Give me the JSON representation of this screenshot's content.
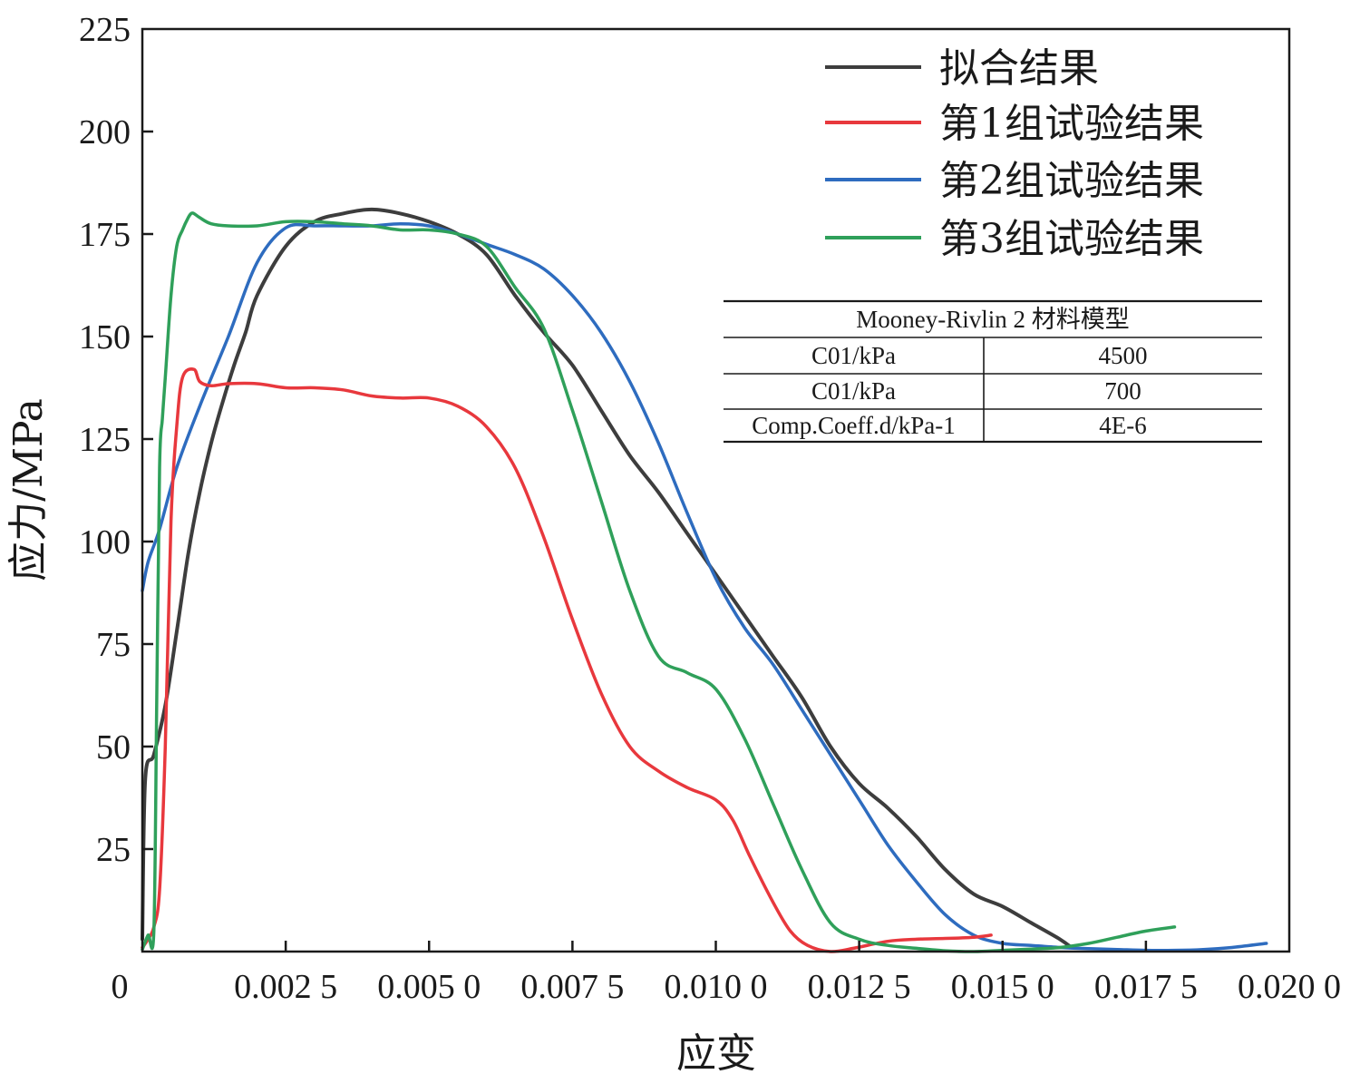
{
  "chart_data": {
    "type": "line",
    "xlabel": "应变",
    "ylabel": "应力/MPa",
    "xlim": [
      0,
      0.02
    ],
    "ylim": [
      0,
      225
    ],
    "x_ticks": [
      0,
      0.0025,
      0.005,
      0.0075,
      0.01,
      0.0125,
      0.015,
      0.0175,
      0.02
    ],
    "x_tick_labels": [
      "0",
      "0.002 5",
      "0.005 0",
      "0.007 5",
      "0.010 0",
      "0.012 5",
      "0.015 0",
      "0.017 5",
      "0.020 0"
    ],
    "y_ticks": [
      25,
      50,
      75,
      100,
      125,
      150,
      175,
      200,
      225
    ],
    "y_tick_labels": [
      "25",
      "50",
      "75",
      "100",
      "125",
      "150",
      "175",
      "200",
      "225"
    ],
    "legend_position": "top-right",
    "grid": false,
    "series": [
      {
        "name": "拟合结果",
        "color": "#3d3d3d",
        "x": [
          0,
          5e-05,
          0.0002,
          0.0004,
          0.0006,
          0.0008,
          0.001,
          0.0012,
          0.0014,
          0.0016,
          0.0018,
          0.002,
          0.0025,
          0.003,
          0.0035,
          0.004,
          0.0045,
          0.005,
          0.0055,
          0.006,
          0.0065,
          0.007,
          0.0075,
          0.008,
          0.0085,
          0.009,
          0.0095,
          0.01,
          0.0105,
          0.011,
          0.0115,
          0.012,
          0.0125,
          0.013,
          0.0135,
          0.014,
          0.0145,
          0.015,
          0.0155,
          0.016,
          0.0162
        ],
        "y": [
          3,
          42,
          48,
          60,
          78,
          97,
          112,
          124,
          134,
          143,
          151,
          160,
          172,
          178,
          180,
          181,
          180,
          178,
          175,
          170,
          160,
          151,
          143,
          132,
          121,
          112,
          102,
          92,
          82,
          72,
          62,
          50,
          41,
          35,
          28,
          20,
          14,
          11,
          7,
          3,
          1
        ],
        "width": 4
      },
      {
        "name": "第1组试验结果",
        "color": "#e8383d",
        "x": [
          0,
          0.0001,
          0.0002,
          0.0003,
          0.0004,
          0.0005,
          0.0006,
          0.0007,
          0.0009,
          0.001,
          0.0012,
          0.0015,
          0.002,
          0.0025,
          0.003,
          0.0035,
          0.004,
          0.0045,
          0.005,
          0.0055,
          0.006,
          0.0065,
          0.007,
          0.0075,
          0.008,
          0.0085,
          0.009,
          0.0095,
          0.01,
          0.0103,
          0.0106,
          0.011,
          0.0113,
          0.0116,
          0.012,
          0.0124,
          0.013,
          0.0135,
          0.014,
          0.0145,
          0.0148
        ],
        "y": [
          1,
          3,
          6,
          15,
          50,
          105,
          128,
          140,
          142,
          139,
          138,
          138.5,
          138.5,
          137.5,
          137.5,
          137,
          135.5,
          135,
          135,
          133,
          128,
          118,
          101,
          81,
          63,
          50,
          44,
          40,
          37,
          32,
          23,
          12,
          5,
          1.5,
          0,
          0.8,
          2.5,
          3,
          3.2,
          3.5,
          4
        ],
        "width": 3.5
      },
      {
        "name": "第2组试验结果",
        "color": "#2e6cbf",
        "x": [
          0,
          0.0001,
          0.0003,
          0.0006,
          0.001,
          0.0015,
          0.002,
          0.0025,
          0.003,
          0.0035,
          0.004,
          0.0045,
          0.005,
          0.0055,
          0.006,
          0.0065,
          0.007,
          0.0075,
          0.008,
          0.0085,
          0.009,
          0.0095,
          0.01,
          0.0105,
          0.011,
          0.0115,
          0.012,
          0.0125,
          0.013,
          0.0135,
          0.014,
          0.0145,
          0.015,
          0.0155,
          0.016,
          0.0165,
          0.017,
          0.0175,
          0.018,
          0.0185,
          0.019,
          0.0196
        ],
        "y": [
          88,
          95,
          103,
          118,
          133,
          150,
          168,
          176.5,
          177,
          177,
          177,
          177.5,
          177,
          175,
          172.5,
          170,
          166.5,
          160,
          151,
          139,
          124,
          107,
          91,
          79,
          70,
          59,
          48,
          37,
          26,
          17,
          9,
          4,
          2,
          1.5,
          1,
          0.7,
          0.5,
          0.3,
          0.3,
          0.5,
          1,
          2
        ],
        "width": 3.5
      },
      {
        "name": "第3组试验结果",
        "color": "#2fa05a",
        "x": [
          0,
          0.0001,
          0.0002,
          0.00025,
          0.0003,
          0.00035,
          0.0004,
          0.0005,
          0.0006,
          0.0007,
          0.0008,
          0.00085,
          0.0009,
          0.001,
          0.0012,
          0.0015,
          0.002,
          0.0025,
          0.003,
          0.0035,
          0.004,
          0.0045,
          0.005,
          0.0055,
          0.006,
          0.0065,
          0.007,
          0.0075,
          0.008,
          0.0085,
          0.009,
          0.0095,
          0.01,
          0.0105,
          0.011,
          0.0115,
          0.012,
          0.0125,
          0.013,
          0.0135,
          0.014,
          0.0145,
          0.015,
          0.0155,
          0.016,
          0.0165,
          0.017,
          0.0175,
          0.018
        ],
        "y": [
          0.5,
          4,
          5,
          60,
          118,
          130,
          140,
          160,
          172,
          176,
          179,
          180,
          180,
          179,
          177.5,
          177,
          177,
          178,
          178,
          177.5,
          177,
          176,
          176,
          175,
          172,
          162,
          152,
          132,
          110,
          88,
          72,
          68,
          64,
          52,
          36,
          20,
          7,
          3,
          1.5,
          0.8,
          0.2,
          0,
          0.3,
          0.6,
          1,
          2,
          3.5,
          5,
          6
        ],
        "width": 3.5
      }
    ],
    "annotation_table": {
      "title": "Mooney-Rivlin 2 材料模型",
      "rows": [
        [
          "C01/kPa",
          "4500"
        ],
        [
          "C01/kPa",
          "700"
        ],
        [
          "Comp.Coeff.d/kPa-1",
          "4E-6"
        ]
      ]
    }
  }
}
